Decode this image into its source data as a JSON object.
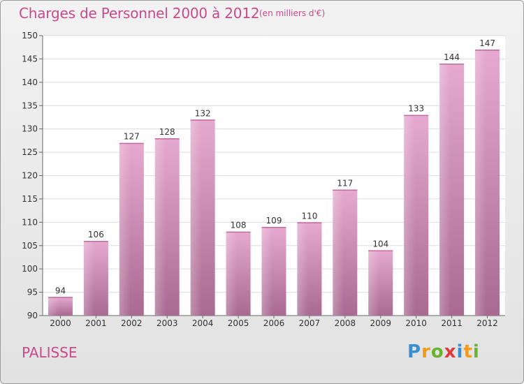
{
  "header": {
    "title": "Charges de Personnel 2000 à 2012",
    "unit": "(en milliers d'€)"
  },
  "footer": {
    "commune": "PALISSE",
    "logo": [
      "P",
      "r",
      "o",
      "x",
      "i",
      "t",
      "i"
    ],
    "logo_colors": [
      "#3a8fd0",
      "#f29a1b",
      "#6ab32e",
      "#e23a3a",
      "#3a8fd0",
      "#f29a1b",
      "#6ab32e"
    ]
  },
  "chart_data": {
    "type": "bar",
    "categories": [
      "2000",
      "2001",
      "2002",
      "2003",
      "2004",
      "2005",
      "2006",
      "2007",
      "2008",
      "2009",
      "2010",
      "2011",
      "2012"
    ],
    "values": [
      94,
      106,
      127,
      128,
      132,
      108,
      109,
      110,
      117,
      104,
      133,
      144,
      147
    ],
    "yticks": [
      90,
      95,
      100,
      105,
      110,
      115,
      120,
      125,
      130,
      135,
      140,
      145,
      150
    ],
    "ylim": [
      90,
      150
    ],
    "grid": true,
    "bar_color": "#d27fb0"
  }
}
